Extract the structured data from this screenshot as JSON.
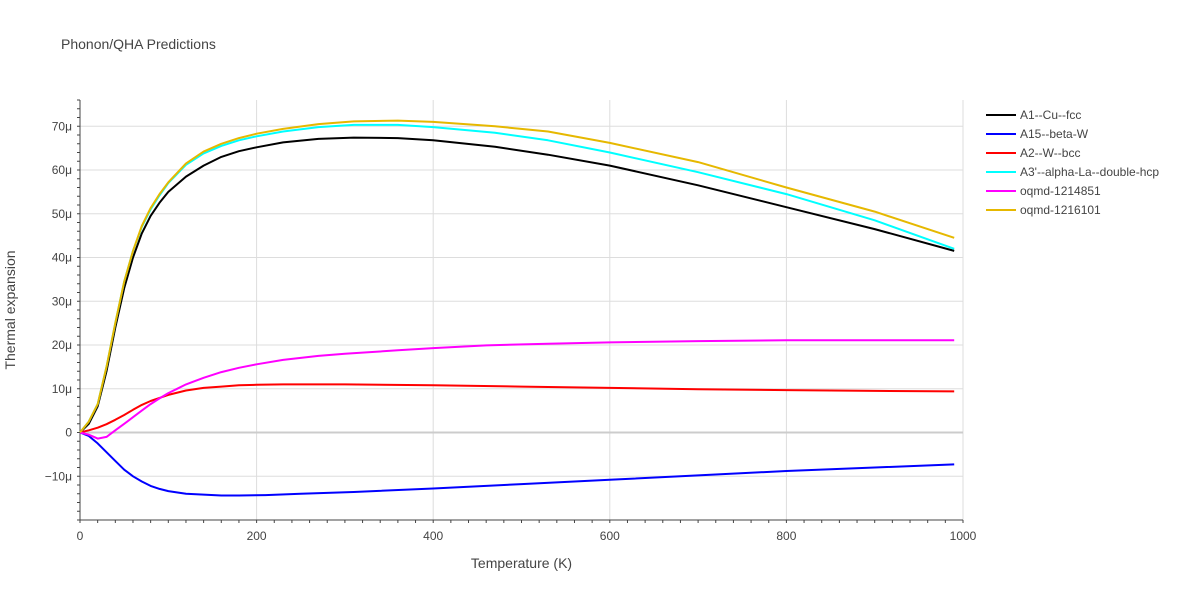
{
  "chart_data": {
    "type": "line",
    "title": "Phonon/QHA Predictions",
    "xlabel": "Temperature (K)",
    "ylabel": "Thermal expansion",
    "xlim": [
      0,
      1000
    ],
    "ylim": [
      -20,
      76
    ],
    "x_ticks": [
      0,
      200,
      400,
      600,
      800,
      1000
    ],
    "x_tick_labels": [
      "0",
      "200",
      "400",
      "600",
      "800",
      "1000"
    ],
    "y_ticks": [
      -10,
      0,
      10,
      20,
      30,
      40,
      50,
      60,
      70
    ],
    "y_tick_labels": [
      "−10μ",
      "0",
      "10μ",
      "20μ",
      "30μ",
      "40μ",
      "50μ",
      "60μ",
      "70μ"
    ],
    "y_unit": "μ (1e-6)",
    "grid": true,
    "legend_position": "top-right, outside plot",
    "series": [
      {
        "name": "A1--Cu--fcc",
        "color": "#000000",
        "x": [
          0,
          10,
          20,
          30,
          40,
          50,
          60,
          70,
          80,
          90,
          100,
          120,
          140,
          160,
          180,
          200,
          230,
          270,
          310,
          360,
          400,
          470,
          530,
          600,
          700,
          800,
          900,
          990
        ],
        "y": [
          0,
          2,
          6,
          14,
          24,
          33,
          40,
          45.5,
          49.5,
          52.5,
          55,
          58.5,
          61,
          63,
          64.3,
          65.2,
          66.3,
          67.1,
          67.4,
          67.3,
          66.8,
          65.3,
          63.5,
          61,
          56.5,
          51.5,
          46.5,
          41.5
        ]
      },
      {
        "name": "A15--beta-W",
        "color": "#0000ff",
        "x": [
          0,
          10,
          20,
          30,
          40,
          50,
          60,
          70,
          80,
          90,
          100,
          120,
          140,
          160,
          180,
          210,
          250,
          310,
          400,
          500,
          600,
          700,
          800,
          900,
          990
        ],
        "y": [
          0,
          -0.8,
          -2.5,
          -4.5,
          -6.5,
          -8.5,
          -10,
          -11.2,
          -12.2,
          -12.9,
          -13.4,
          -14,
          -14.2,
          -14.4,
          -14.4,
          -14.3,
          -14,
          -13.6,
          -12.8,
          -11.8,
          -10.8,
          -9.8,
          -8.8,
          -8,
          -7.3
        ]
      },
      {
        "name": "A2--W--bcc",
        "color": "#ff0000",
        "x": [
          0,
          10,
          20,
          30,
          40,
          50,
          60,
          70,
          80,
          90,
          100,
          120,
          140,
          160,
          180,
          200,
          230,
          300,
          400,
          500,
          600,
          700,
          800,
          900,
          990
        ],
        "y": [
          0,
          0.5,
          1.1,
          1.9,
          2.9,
          4,
          5.2,
          6.3,
          7.2,
          7.9,
          8.6,
          9.6,
          10.2,
          10.5,
          10.8,
          10.9,
          11,
          11,
          10.8,
          10.5,
          10.2,
          9.9,
          9.7,
          9.5,
          9.4
        ]
      },
      {
        "name": "A3'--alpha-La--double-hcp",
        "color": "#00ffff",
        "x": [
          0,
          10,
          20,
          30,
          40,
          50,
          60,
          70,
          80,
          90,
          100,
          120,
          140,
          160,
          180,
          200,
          230,
          270,
          310,
          360,
          400,
          470,
          530,
          600,
          700,
          800,
          900,
          990
        ],
        "y": [
          0,
          2.5,
          6.5,
          15,
          25,
          34.5,
          41.5,
          47,
          51,
          54.2,
          57,
          61.2,
          63.8,
          65.5,
          66.8,
          67.7,
          68.8,
          69.8,
          70.3,
          70.3,
          69.8,
          68.5,
          66.8,
          64,
          59.5,
          54.5,
          48.5,
          42
        ]
      },
      {
        "name": "oqmd-1214851",
        "color": "#ff00ff",
        "x": [
          0,
          10,
          20,
          30,
          40,
          50,
          60,
          70,
          80,
          90,
          100,
          110,
          120,
          140,
          160,
          180,
          200,
          230,
          270,
          300,
          360,
          400,
          460,
          530,
          600,
          700,
          800,
          900,
          990
        ],
        "y": [
          0,
          -0.5,
          -1.4,
          -1,
          0.5,
          2,
          3.5,
          5,
          6.5,
          7.8,
          9,
          10,
          11,
          12.5,
          13.8,
          14.8,
          15.6,
          16.6,
          17.5,
          18,
          18.8,
          19.3,
          19.9,
          20.3,
          20.6,
          20.9,
          21.1,
          21.1,
          21.1
        ]
      },
      {
        "name": "oqmd-1216101",
        "color": "#e6b800",
        "x": [
          0,
          10,
          20,
          30,
          40,
          50,
          60,
          70,
          80,
          90,
          100,
          120,
          140,
          160,
          180,
          200,
          230,
          270,
          310,
          360,
          400,
          470,
          530,
          600,
          700,
          800,
          900,
          990
        ],
        "y": [
          0,
          2.5,
          6.5,
          15,
          25,
          34.5,
          41.5,
          47.2,
          51.3,
          54.5,
          57.2,
          61.5,
          64.2,
          66,
          67.3,
          68.3,
          69.4,
          70.5,
          71.1,
          71.3,
          71,
          70,
          68.8,
          66.2,
          61.8,
          56,
          50.5,
          44.5
        ]
      }
    ]
  }
}
